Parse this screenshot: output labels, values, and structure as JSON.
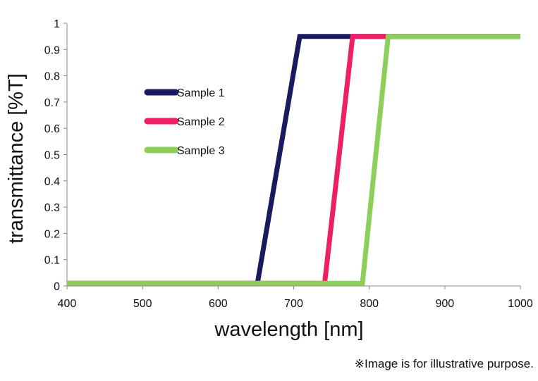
{
  "chart_data": {
    "type": "line",
    "xlabel": "wavelength [nm]",
    "ylabel": "transmittance [%T]",
    "xlim": [
      400,
      1000
    ],
    "ylim": [
      0,
      1
    ],
    "xticks": [
      400,
      500,
      600,
      700,
      800,
      900,
      1000
    ],
    "yticks": [
      0,
      0.1,
      0.2,
      0.3,
      0.4,
      0.5,
      0.6,
      0.7,
      0.8,
      0.9,
      1
    ],
    "ytick_labels": [
      "0",
      "0.1",
      "0.2",
      "0.3",
      "0.4",
      "0.5",
      "0.6",
      "0.7",
      "0.8",
      "0.9",
      "1"
    ],
    "grid": false,
    "legend_position": "upper-left inside plot",
    "series": [
      {
        "name": "Sample 1",
        "color": "#1a1a5e",
        "points": [
          [
            400,
            0.01
          ],
          [
            652,
            0.01
          ],
          [
            708,
            0.95
          ],
          [
            1000,
            0.95
          ]
        ]
      },
      {
        "name": "Sample 2",
        "color": "#ee1f66",
        "points": [
          [
            400,
            0.01
          ],
          [
            741,
            0.01
          ],
          [
            778,
            0.95
          ],
          [
            1000,
            0.95
          ]
        ]
      },
      {
        "name": "Sample 3",
        "color": "#8ccf5a",
        "points": [
          [
            400,
            0.01
          ],
          [
            791,
            0.01
          ],
          [
            825,
            0.95
          ],
          [
            1000,
            0.95
          ]
        ]
      }
    ]
  },
  "footnote": "※Image is for illustrative purpose."
}
